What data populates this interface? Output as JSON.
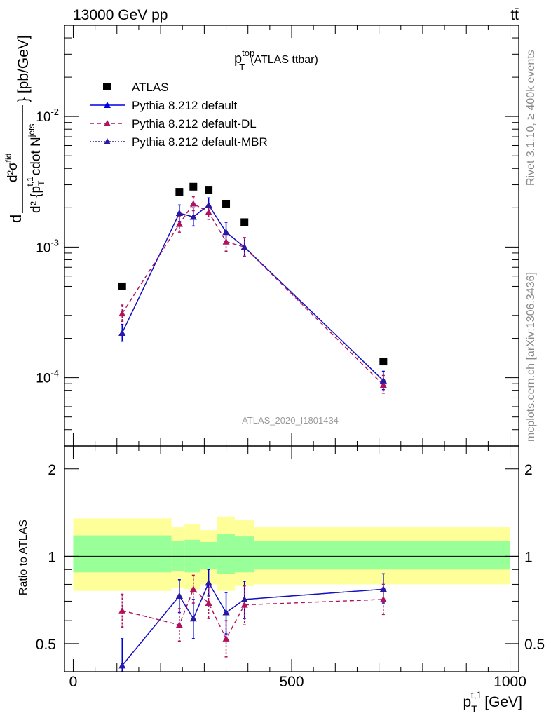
{
  "header": {
    "left": "13000 GeV pp",
    "right": "tt̄"
  },
  "side_labels": {
    "rivet": "Rivet 3.1.10, ≥ 400k events",
    "mcplots": "mcplots.cern.ch [arXiv:1306.3436]"
  },
  "colors": {
    "data": "#000000",
    "default": "#0000e0",
    "dl": "#b0125e",
    "mbr": "#2a1aa0",
    "band_inner": "#99ff99",
    "band_outer": "#ffff99"
  },
  "chart_data": [
    {
      "type": "line",
      "title_main": "p",
      "title_sup": "top",
      "title_sub": "T",
      "title_rest": "(ATLAS ttbar)",
      "ylabel": {
        "d": "d",
        "num": "d²σ",
        "num_sup": "fid",
        "den": "d² {p",
        "den_sub": "T",
        "den_sup": "t,1",
        "den_rest": "cdot N",
        "den_rest_sub": "jets",
        "unit": "} [pb/GeV]"
      },
      "yscale": "log",
      "ylim": [
        3e-05,
        0.05
      ],
      "xlim": [
        -20,
        1020
      ],
      "ytick_labels": [
        {
          "base": "10",
          "exp": "-4",
          "value": 0.0001
        },
        {
          "base": "10",
          "exp": "-3",
          "value": 0.001
        },
        {
          "base": "10",
          "exp": "-2",
          "value": 0.01
        }
      ],
      "watermark": "ATLAS_2020_I1801434",
      "legend": [
        {
          "label": "ATLAS",
          "key": "data"
        },
        {
          "label": "Pythia 8.212 default",
          "key": "default"
        },
        {
          "label": "Pythia 8.212 default-DL",
          "key": "dl"
        },
        {
          "label": "Pythia 8.212 default-MBR",
          "key": "mbr"
        }
      ],
      "x": [
        112,
        243,
        275,
        310,
        350,
        392,
        710
      ],
      "series": [
        {
          "name": "ATLAS",
          "key": "data",
          "values": [
            0.0005,
            0.00265,
            0.0029,
            0.00275,
            0.00215,
            0.00155,
            0.000133
          ]
        },
        {
          "name": "Pythia 8.212 default",
          "key": "default",
          "values": [
            0.00022,
            0.00182,
            0.0017,
            0.0021,
            0.0013,
            0.001,
            9.5e-05
          ],
          "err_up": [
            3.6e-05,
            0.00028,
            0.0003,
            0.00028,
            0.00025,
            0.00018,
            1.7e-05
          ],
          "err_dn": [
            3e-05,
            0.00025,
            0.00025,
            0.00025,
            0.00022,
            0.00015,
            1.4e-05
          ]
        },
        {
          "name": "Pythia 8.212 default-DL",
          "key": "dl",
          "values": [
            0.00031,
            0.0015,
            0.00215,
            0.00185,
            0.0011,
            0.001,
            8.8e-05
          ],
          "err_up": [
            5e-05,
            0.00023,
            0.00028,
            0.00026,
            0.0002,
            0.00018,
            1.6e-05
          ],
          "err_dn": [
            4e-05,
            0.0002,
            0.00025,
            0.00022,
            0.00017,
            0.00015,
            1.2e-05
          ]
        },
        {
          "name": "Pythia 8.212 default-MBR",
          "key": "mbr",
          "values": [
            0.00022,
            0.00182,
            0.0017,
            0.0021,
            0.0013,
            0.001,
            9.5e-05
          ]
        }
      ]
    },
    {
      "type": "line",
      "ylabel": "Ratio to ATLAS",
      "xlabel_main": "p",
      "xlabel_sub": "T",
      "xlabel_sup": "t,1",
      "xlabel_unit": "[GeV]",
      "xlim": [
        -20,
        1020
      ],
      "ylim": [
        0.4,
        2.4
      ],
      "yscale": "log",
      "xtick_labels": [
        "0",
        "500",
        "1000"
      ],
      "xtick_values": [
        0,
        500,
        1000
      ],
      "ytick_labels_left": [
        "0.5",
        "1",
        "2"
      ],
      "ytick_labels_right": [
        "0.5",
        "1",
        "2"
      ],
      "ytick_values": [
        0.5,
        1,
        2
      ],
      "bands": {
        "edges": [
          0,
          225,
          255,
          290,
          330,
          370,
          415,
          1000
        ],
        "outer_lo": [
          0.76,
          0.78,
          0.77,
          0.8,
          0.76,
          0.79,
          0.8
        ],
        "outer_hi": [
          1.35,
          1.26,
          1.29,
          1.23,
          1.37,
          1.33,
          1.26
        ],
        "inner_lo": [
          0.88,
          0.89,
          0.88,
          0.9,
          0.87,
          0.88,
          0.9
        ],
        "inner_hi": [
          1.18,
          1.13,
          1.14,
          1.12,
          1.19,
          1.17,
          1.13
        ]
      },
      "x": [
        112,
        243,
        275,
        310,
        350,
        392,
        710
      ],
      "series": [
        {
          "name": "Pythia 8.212 default",
          "key": "default",
          "values": [
            0.42,
            0.73,
            0.61,
            0.81,
            0.64,
            0.71,
            0.77
          ],
          "err_up": [
            0.1,
            0.1,
            0.1,
            0.09,
            0.11,
            0.11,
            0.1
          ],
          "err_dn": [
            0.07,
            0.09,
            0.09,
            0.08,
            0.1,
            0.1,
            0.08
          ]
        },
        {
          "name": "Pythia 8.212 default-DL",
          "key": "dl",
          "values": [
            0.65,
            0.58,
            0.77,
            0.69,
            0.52,
            0.68,
            0.71
          ],
          "err_up": [
            0.09,
            0.08,
            0.09,
            0.09,
            0.08,
            0.11,
            0.09
          ],
          "err_dn": [
            0.08,
            0.07,
            0.08,
            0.08,
            0.07,
            0.1,
            0.08
          ]
        },
        {
          "name": "Pythia 8.212 default-MBR",
          "key": "mbr",
          "values": [
            0.42,
            0.73,
            0.61,
            0.81,
            0.64,
            0.71,
            0.77
          ]
        }
      ]
    }
  ]
}
